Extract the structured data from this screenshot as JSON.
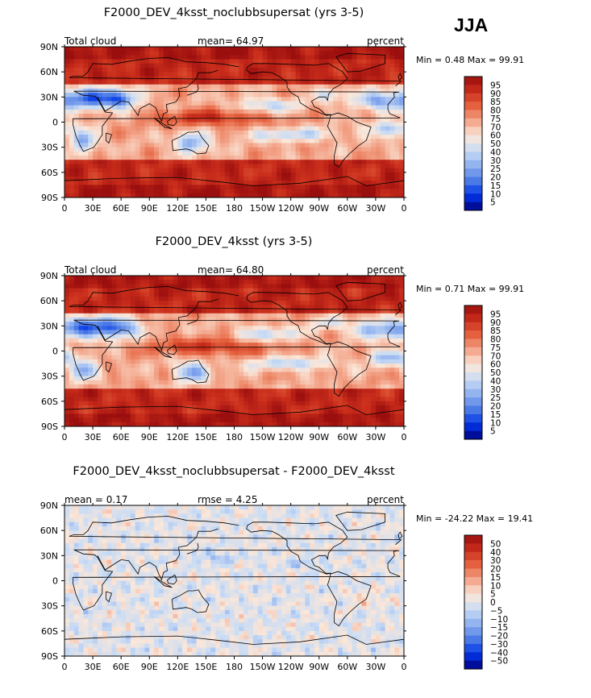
{
  "season": "JJA",
  "colors": {
    "map_stops": [
      "#00007f",
      "#0033e6",
      "#4d7ce6",
      "#8fb0ef",
      "#c9dcf5",
      "#fbe7d9",
      "#f3a58a",
      "#e5623f",
      "#c92d1b",
      "#9a0e0e"
    ],
    "coast": "#000000",
    "ocean_bg": "#d8e6f5"
  },
  "chart_data": [
    {
      "type": "heatmap",
      "title": "F2000_DEV_4ksst_noclubbsupersat (yrs 3-5)",
      "left_label": "Total cloud",
      "center_label": "mean=   64.97",
      "right_label": "percent",
      "minmax_label": "Min =    0.48  Max =   99.91",
      "field": "total_cloud",
      "diff": false,
      "mean": 64.97,
      "min": 0.48,
      "max": 99.91,
      "units": "percent",
      "xlabel": "",
      "ylabel": "",
      "x_ticks": [
        "0",
        "30E",
        "60E",
        "90E",
        "120E",
        "150E",
        "180",
        "150W",
        "120W",
        "90W",
        "60W",
        "30W",
        "0"
      ],
      "y_ticks": [
        "90N",
        "60N",
        "30N",
        "0",
        "30S",
        "60S",
        "90S"
      ],
      "colorbar_labels": [
        "95",
        "90",
        "85",
        "80",
        "75",
        "70",
        "60",
        "50",
        "40",
        "30",
        "25",
        "20",
        "15",
        "10",
        "5"
      ],
      "colorbar_range": [
        0,
        100
      ]
    },
    {
      "type": "heatmap",
      "title": "F2000_DEV_4ksst (yrs 3-5)",
      "left_label": "Total cloud",
      "center_label": "mean=   64.80",
      "right_label": "percent",
      "minmax_label": "Min =    0.71  Max =   99.91",
      "field": "total_cloud",
      "diff": false,
      "mean": 64.8,
      "min": 0.71,
      "max": 99.91,
      "units": "percent",
      "xlabel": "",
      "ylabel": "",
      "x_ticks": [
        "0",
        "30E",
        "60E",
        "90E",
        "120E",
        "150E",
        "180",
        "150W",
        "120W",
        "90W",
        "60W",
        "30W",
        "0"
      ],
      "y_ticks": [
        "90N",
        "60N",
        "30N",
        "0",
        "30S",
        "60S",
        "90S"
      ],
      "colorbar_labels": [
        "95",
        "90",
        "85",
        "80",
        "75",
        "70",
        "60",
        "50",
        "40",
        "30",
        "25",
        "20",
        "15",
        "10",
        "5"
      ],
      "colorbar_range": [
        0,
        100
      ]
    },
    {
      "type": "heatmap",
      "title": "F2000_DEV_4ksst_noclubbsupersat - F2000_DEV_4ksst",
      "left_label": "mean =    0.17",
      "center_label": "rmse =    4.25",
      "right_label": "percent",
      "minmax_label": "Min = -24.22  Max =   19.41",
      "field": "total_cloud_difference",
      "diff": true,
      "mean": 0.17,
      "rmse": 4.25,
      "min": -24.22,
      "max": 19.41,
      "units": "percent",
      "xlabel": "",
      "ylabel": "",
      "x_ticks": [
        "0",
        "30E",
        "60E",
        "90E",
        "120E",
        "150E",
        "180",
        "150W",
        "120W",
        "90W",
        "60W",
        "30W",
        "0"
      ],
      "y_ticks": [
        "90N",
        "60N",
        "30N",
        "0",
        "30S",
        "60S",
        "90S"
      ],
      "colorbar_labels": [
        "50",
        "40",
        "30",
        "20",
        "15",
        "10",
        "5",
        "0",
        "−5",
        "−10",
        "−15",
        "−20",
        "−30",
        "−40",
        "−50"
      ],
      "colorbar_range": [
        -60,
        60
      ]
    }
  ]
}
